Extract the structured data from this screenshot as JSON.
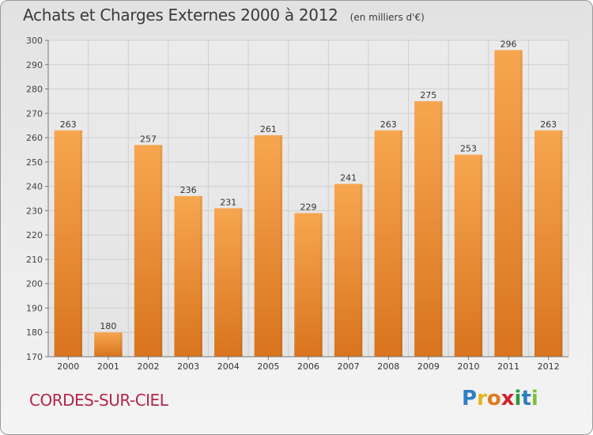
{
  "header": {
    "title": "Achats et Charges Externes 2000 à 2012",
    "unit": "(en milliers d'€)"
  },
  "footer": {
    "town": "CORDES-SUR-CIEL",
    "logo_letters": [
      {
        "char": "P",
        "color": "#2e7fc4"
      },
      {
        "char": "r",
        "color": "#e5b51e"
      },
      {
        "char": "o",
        "color": "#e07a1e"
      },
      {
        "char": "x",
        "color": "#d0202e"
      },
      {
        "char": "i",
        "color": "#2e9a3e"
      },
      {
        "char": "t",
        "color": "#2e7fc4"
      },
      {
        "char": "i",
        "color": "#7fbf3f"
      }
    ]
  },
  "chart_data": {
    "type": "bar",
    "title": "Achats et Charges Externes 2000 à 2012",
    "subtitle": "(en milliers d'€)",
    "categories": [
      "2000",
      "2001",
      "2002",
      "2003",
      "2004",
      "2005",
      "2006",
      "2007",
      "2008",
      "2009",
      "2010",
      "2011",
      "2012"
    ],
    "values": [
      263,
      180,
      257,
      236,
      231,
      261,
      229,
      241,
      263,
      275,
      253,
      296,
      263
    ],
    "ylim": [
      170,
      300
    ],
    "yticks": [
      170,
      180,
      190,
      200,
      210,
      220,
      230,
      240,
      250,
      260,
      270,
      280,
      290,
      300
    ],
    "grid": true,
    "bar_color_top": "#f7a650",
    "bar_color_bottom": "#d9741e",
    "data_labels": true
  }
}
